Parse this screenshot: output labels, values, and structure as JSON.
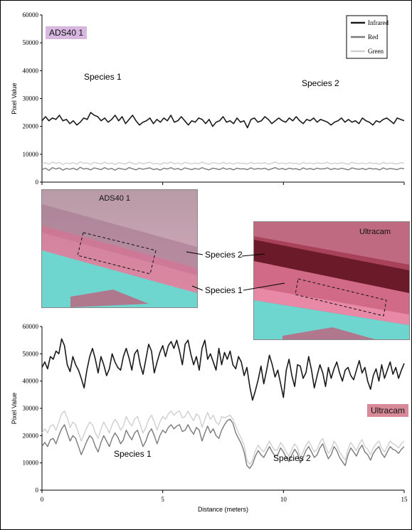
{
  "chart_data": [
    {
      "type": "line",
      "ylabel": "Pixel Value",
      "ylim": [
        0,
        60000
      ],
      "yticks": [
        "0",
        "10000",
        "20000",
        "30000",
        "40000",
        "50000",
        "60000"
      ],
      "xlim": [
        0,
        15
      ],
      "sensor_label": "ADS40 1",
      "annotations": [
        "Species 1",
        "Species 2"
      ],
      "legend": {
        "position": "top-right"
      },
      "series": [
        {
          "name": "Infrared",
          "color": "#1a1a1a",
          "values": [
            22000,
            23500,
            22000,
            23000,
            22500,
            24000,
            22000,
            22500,
            21000,
            22000,
            20500,
            21500,
            23000,
            22500,
            25000,
            24000,
            23500,
            22000,
            23000,
            21500,
            22500,
            24000,
            22000,
            23500,
            21000,
            22500,
            24000,
            22000,
            20500,
            21500,
            22000,
            23000,
            21000,
            22500,
            21500,
            23000,
            22000,
            24000,
            21500,
            22000,
            23500,
            22000,
            20500,
            22000,
            21500,
            23000,
            22500,
            21000,
            22500,
            20000,
            21500,
            22000,
            23500,
            21500,
            22000,
            21000,
            23000,
            21500,
            22000,
            19500,
            22500,
            23000,
            21500,
            22000,
            23500,
            22500,
            21000,
            22000,
            23000,
            22000,
            21500,
            23000,
            22000,
            23500,
            22000,
            21000,
            22500,
            22000,
            23000,
            21500,
            22500,
            22000,
            21500,
            20500,
            21500,
            22000,
            23000,
            21500,
            22500,
            21500,
            22000,
            21000,
            23000,
            22000,
            21500,
            20500,
            22000,
            21500,
            22500,
            23000,
            22000,
            21000,
            23000,
            22500,
            22000
          ]
        },
        {
          "name": "Red",
          "color": "#7a7a7a",
          "values": [
            4500,
            5000,
            4200,
            5200,
            4700,
            5100,
            4300,
            4900,
            4600,
            5000,
            4400,
            5300,
            4700,
            4900,
            4400,
            5100,
            4800,
            4500,
            5200,
            4600,
            4900,
            4300,
            5000,
            4700,
            4500,
            5200,
            4800,
            4400,
            5000,
            4600,
            4900,
            5100,
            4500,
            4800,
            4300,
            5000,
            4700,
            5200,
            4600,
            4900,
            4400,
            5100,
            4800,
            4500,
            4900,
            4600,
            5200,
            4700,
            4400,
            5000,
            4800,
            4500,
            5100,
            4600,
            4900,
            4400,
            5000,
            4700,
            4800,
            4500,
            5100,
            4600,
            4900,
            4700,
            5000,
            4400,
            4800,
            5200,
            4600,
            4900,
            4500,
            5000,
            4700,
            4800,
            4400,
            5100,
            4600,
            4900,
            4500,
            5000,
            4700,
            4800,
            5100,
            4500,
            4900,
            4600,
            5000,
            4700,
            4400,
            5100,
            4800,
            4600,
            4900,
            4500,
            5000,
            4700,
            4800,
            4400,
            5100,
            4600,
            4900,
            4700,
            4500,
            5000,
            4800
          ]
        },
        {
          "name": "Green",
          "color": "#cfcfcf",
          "values": [
            6500,
            7000,
            6400,
            7200,
            6700,
            7100,
            6300,
            6900,
            6600,
            7000,
            6400,
            7300,
            6700,
            6900,
            6400,
            7100,
            6800,
            6500,
            7200,
            6600,
            6900,
            6300,
            7000,
            6700,
            6500,
            7200,
            6800,
            6400,
            7000,
            6600,
            6900,
            7100,
            6500,
            6800,
            6300,
            7000,
            6700,
            7200,
            6600,
            6900,
            6400,
            7100,
            6800,
            6500,
            6900,
            6600,
            7200,
            6700,
            6400,
            7000,
            6800,
            6500,
            7100,
            6600,
            6900,
            6400,
            7000,
            6700,
            6800,
            6500,
            7100,
            6600,
            6900,
            6700,
            7000,
            6400,
            6800,
            7200,
            6600,
            6900,
            6500,
            7000,
            6700,
            6800,
            6400,
            7100,
            6600,
            6900,
            6500,
            7000,
            6700,
            6800,
            7100,
            6500,
            6900,
            6600,
            7000,
            6700,
            6400,
            7100,
            6800,
            6600,
            6900,
            6500,
            7000,
            6700,
            6800,
            6400,
            7100,
            6600,
            6900,
            6700,
            6500,
            7000,
            6800
          ]
        }
      ]
    },
    {
      "type": "line",
      "ylabel": "Pixel Value",
      "xlabel": "Distance (meters)",
      "ylim": [
        0,
        60000
      ],
      "yticks": [
        "0",
        "10000",
        "20000",
        "30000",
        "40000",
        "50000",
        "60000"
      ],
      "xlim": [
        0,
        15
      ],
      "xticks": [
        "0",
        "5",
        "10",
        "15"
      ],
      "sensor_label": "Ultracam",
      "annotations": [
        "Species 1",
        "Species 2"
      ],
      "series": [
        {
          "name": "Infrared",
          "color": "#1a1a1a",
          "values": [
            45000,
            47000,
            44500,
            49000,
            48000,
            51000,
            50000,
            55500,
            53000,
            46000,
            43500,
            49000,
            46000,
            44000,
            41000,
            37500,
            44000,
            49000,
            52000,
            48000,
            43000,
            49000,
            46000,
            42000,
            44500,
            50000,
            47000,
            45000,
            44000,
            49000,
            52000,
            48500,
            44000,
            50000,
            51500,
            46000,
            42500,
            48000,
            53500,
            51000,
            43000,
            47000,
            50500,
            53000,
            49000,
            53000,
            54500,
            52000,
            55000,
            51000,
            46000,
            53500,
            55000,
            50000,
            46000,
            49000,
            44000,
            52000,
            55000,
            48000,
            50000,
            47000,
            44000,
            52000,
            46000,
            50500,
            48000,
            51000,
            46000,
            44500,
            49000,
            47000,
            42000,
            45000,
            38000,
            33000,
            36500,
            40500,
            45500,
            39000,
            44000,
            49500,
            46000,
            41500,
            44000,
            39000,
            34000,
            44000,
            48000,
            42000,
            38000,
            46000,
            45500,
            41000,
            43000,
            49000,
            44000,
            37500,
            42000,
            46000,
            43000,
            38000,
            45000,
            41000,
            44500,
            47000,
            43000,
            40000,
            44000,
            45000,
            42000,
            40500,
            44000,
            47500,
            43000,
            45000,
            40000,
            37000,
            42000,
            44500,
            40000,
            46000,
            41000,
            44000,
            47000,
            42500,
            45000,
            41000,
            44000,
            46500
          ]
        },
        {
          "name": "Red",
          "color": "#7a7a7a",
          "values": [
            16000,
            17500,
            16000,
            18500,
            19000,
            17000,
            20000,
            22500,
            24000,
            21000,
            18000,
            20000,
            19000,
            16000,
            13000,
            15500,
            18000,
            20000,
            19000,
            16000,
            14000,
            17500,
            20000,
            18000,
            16000,
            19000,
            21000,
            19500,
            17000,
            18500,
            22000,
            20000,
            18500,
            21000,
            22000,
            19000,
            16000,
            18000,
            21000,
            22500,
            20000,
            17000,
            20000,
            22000,
            21000,
            23000,
            24000,
            22500,
            23500,
            24000,
            21500,
            22000,
            24000,
            22000,
            20500,
            23000,
            22000,
            18000,
            21000,
            23500,
            21000,
            22500,
            20000,
            19000,
            22000,
            24000,
            25500,
            26000,
            24500,
            21000,
            19000,
            17000,
            14000,
            9000,
            8000,
            9500,
            12500,
            14500,
            13000,
            12000,
            14000,
            16000,
            14000,
            12500,
            13000,
            15500,
            14000,
            12000,
            10500,
            13000,
            15000,
            13500,
            10000,
            12000,
            14500,
            16000,
            14000,
            12000,
            13000,
            15500,
            17000,
            14000,
            11500,
            13000,
            16000,
            14500,
            12000,
            10500,
            9000,
            13000,
            15500,
            14000,
            12500,
            15000,
            16500,
            14000,
            13000,
            11000,
            13500,
            15000,
            16000,
            13500,
            12000,
            14000,
            16000,
            15000,
            14500,
            13500,
            15000,
            16000
          ]
        },
        {
          "name": "Green",
          "color": "#cfcfcf",
          "values": [
            21000,
            22500,
            21000,
            23500,
            24000,
            22000,
            25000,
            28000,
            29000,
            26500,
            23000,
            25000,
            24000,
            21000,
            18000,
            20500,
            23000,
            25000,
            24000,
            21000,
            19000,
            22500,
            25000,
            23000,
            21000,
            24000,
            26000,
            24500,
            22000,
            23500,
            27000,
            25000,
            23500,
            26000,
            27000,
            24000,
            21000,
            23000,
            26000,
            27500,
            25000,
            22000,
            25000,
            27000,
            26000,
            28000,
            29000,
            27500,
            28500,
            29000,
            26500,
            27000,
            29000,
            27000,
            25500,
            28000,
            27000,
            23000,
            26000,
            28500,
            26000,
            27500,
            25000,
            24000,
            27000,
            26500,
            27000,
            27500,
            26000,
            23500,
            21000,
            19000,
            16500,
            11000,
            9500,
            11000,
            14500,
            16500,
            15000,
            14000,
            16000,
            18000,
            16000,
            14500,
            15000,
            17500,
            16000,
            14000,
            12500,
            15000,
            17000,
            15500,
            12000,
            14000,
            16500,
            18000,
            16000,
            14000,
            15000,
            17500,
            19000,
            16000,
            13500,
            15000,
            18000,
            16500,
            14000,
            12500,
            11000,
            15000,
            17500,
            16000,
            14500,
            17000,
            18500,
            16000,
            15000,
            13000,
            15500,
            17000,
            18000,
            15500,
            14000,
            16000,
            18000,
            17000,
            16500,
            15500,
            17000,
            18000
          ]
        }
      ]
    }
  ],
  "photos": {
    "left": {
      "label": "ADS40 1"
    },
    "right": {
      "label": "Ultracam"
    }
  },
  "callouts": {
    "species2": "Species 2",
    "species1": "Species 1"
  }
}
